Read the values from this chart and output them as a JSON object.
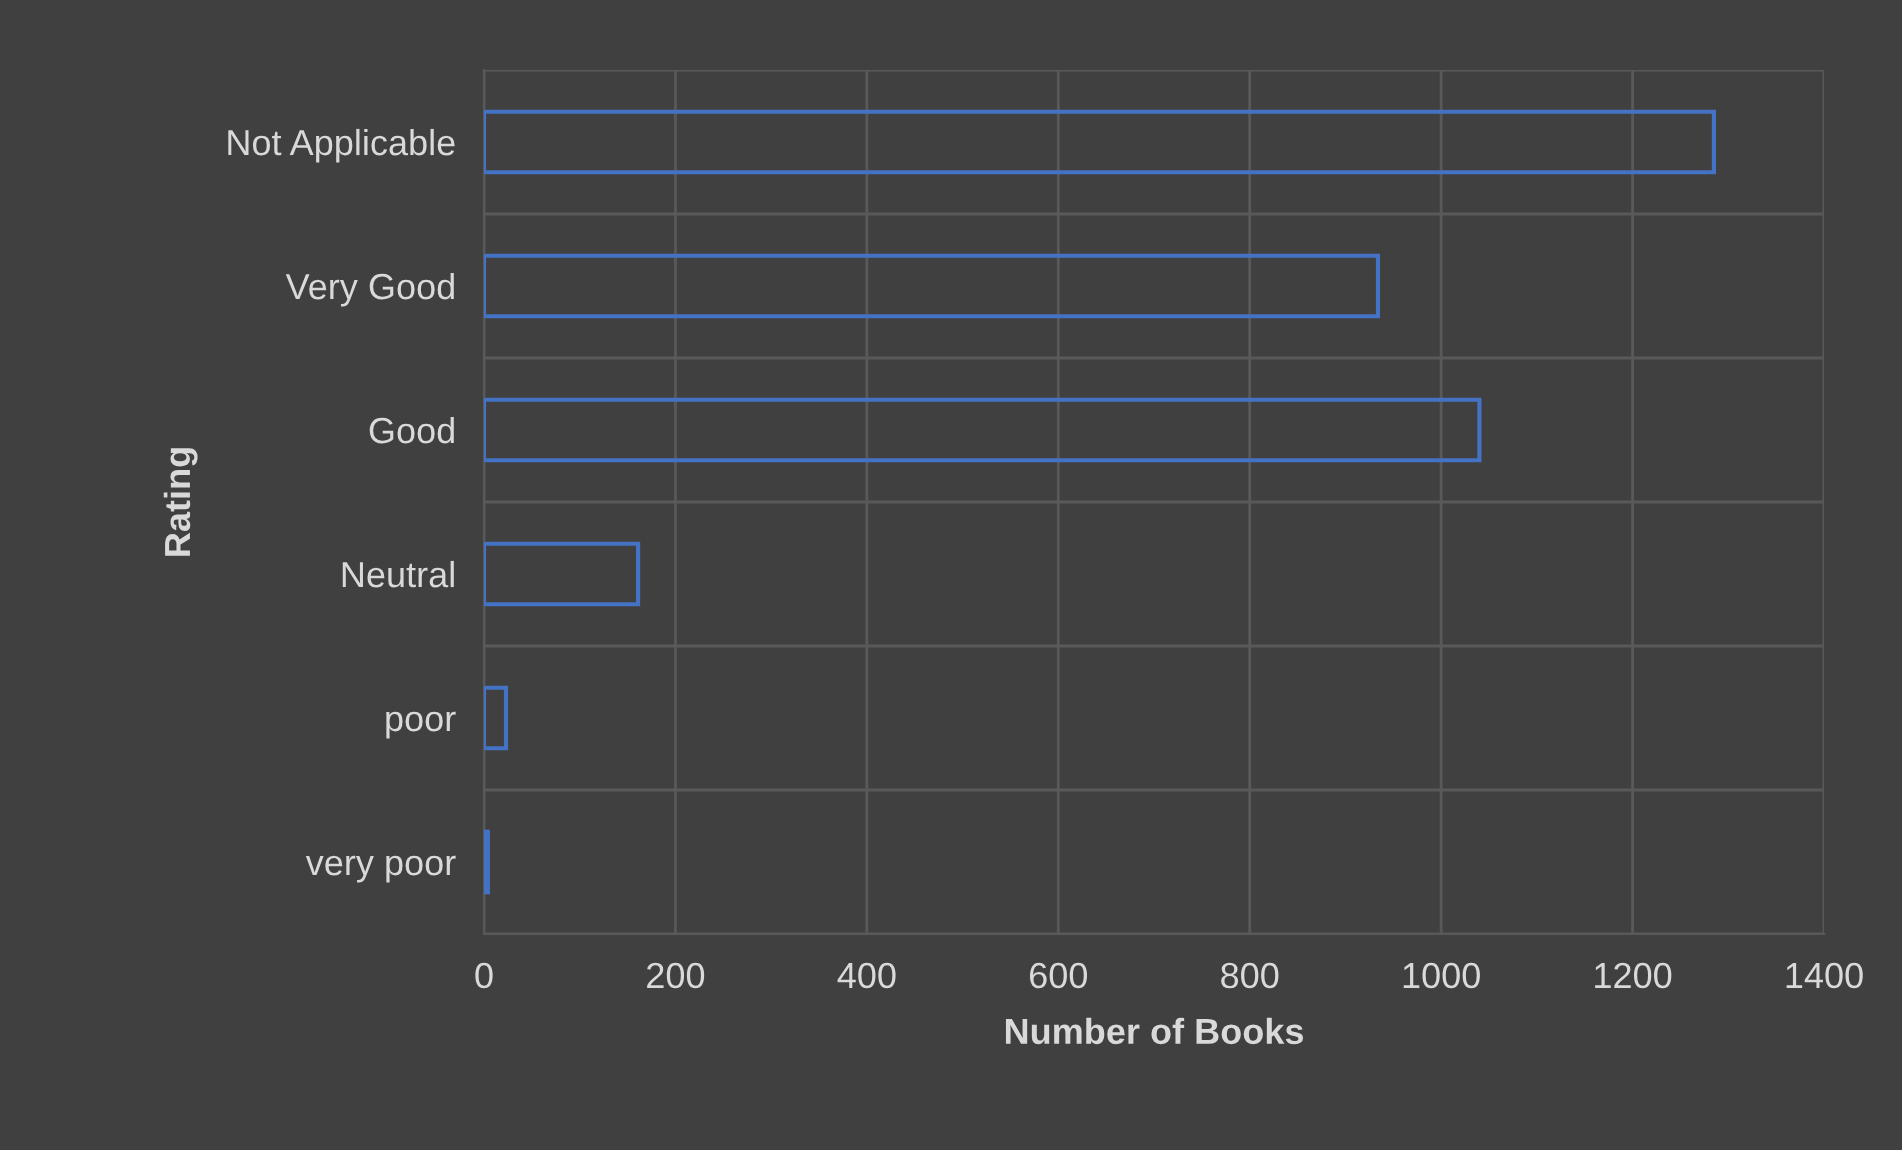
{
  "chart_data": {
    "type": "bar",
    "orientation": "horizontal",
    "xlabel": "Number of Books",
    "ylabel": "Rating",
    "categories": [
      "Not Applicable",
      "Very Good",
      "Good",
      "Neutral",
      "poor",
      "very poor"
    ],
    "values": [
      1285,
      934,
      1040,
      161,
      23,
      4
    ],
    "color": "#4472c4",
    "xlim": [
      0,
      1400
    ],
    "xticks": [
      0,
      200,
      400,
      600,
      800,
      1000,
      1200,
      1400
    ],
    "grid": true,
    "legend": false
  }
}
